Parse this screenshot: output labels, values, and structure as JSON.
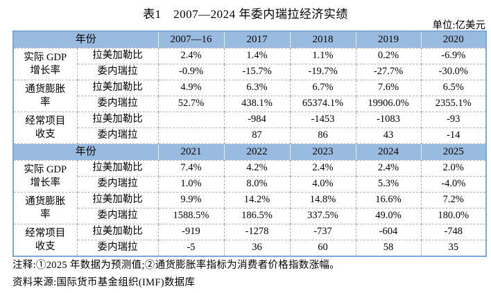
{
  "title": "表1　2007—2024 年委内瑞拉经济实绩",
  "unit_label": "单位:亿美元",
  "table": {
    "year_header": "年份",
    "blocks": [
      {
        "years": [
          "2007—16",
          "2017",
          "2018",
          "2019",
          "2020"
        ],
        "groups": [
          {
            "label_lines": [
              "实际 GDP",
              "增长率"
            ],
            "rows": [
              {
                "region": "拉美加勒比",
                "values": [
                  "2.4%",
                  "1.4%",
                  "1.1%",
                  "0.2%",
                  "-6.9%"
                ]
              },
              {
                "region": "委内瑞拉",
                "values": [
                  "-0.9%",
                  "-15.7%",
                  "-19.7%",
                  "-27.7%",
                  "-30.0%"
                ]
              }
            ]
          },
          {
            "label_lines": [
              "通货膨胀",
              "率"
            ],
            "rows": [
              {
                "region": "拉美加勒比",
                "values": [
                  "4.9%",
                  "6.3%",
                  "6.7%",
                  "7.6%",
                  "6.5%"
                ]
              },
              {
                "region": "委内瑞拉",
                "values": [
                  "52.7%",
                  "438.1%",
                  "65374.1%",
                  "19906.0%",
                  "2355.1%"
                ]
              }
            ]
          },
          {
            "label_lines": [
              "经常项目",
              "收支"
            ],
            "rows": [
              {
                "region": "拉美加勒比",
                "values": [
                  "",
                  "-984",
                  "-1453",
                  "-1083",
                  "-93"
                ]
              },
              {
                "region": "委内瑞拉",
                "values": [
                  "",
                  "87",
                  "86",
                  "43",
                  "-14"
                ]
              }
            ]
          }
        ]
      },
      {
        "years": [
          "2021",
          "2022",
          "2023",
          "2024",
          "2025"
        ],
        "groups": [
          {
            "label_lines": [
              "实际 GDP",
              "增长率"
            ],
            "rows": [
              {
                "region": "拉美加勒比",
                "values": [
                  "7.4%",
                  "4.2%",
                  "2.4%",
                  "2.4%",
                  "2.0%"
                ]
              },
              {
                "region": "委内瑞拉",
                "values": [
                  "1.0%",
                  "8.0%",
                  "4.0%",
                  "5.3%",
                  "-4.0%"
                ]
              }
            ]
          },
          {
            "label_lines": [
              "通货膨胀",
              "率"
            ],
            "rows": [
              {
                "region": "拉美加勒比",
                "values": [
                  "9.9%",
                  "14.2%",
                  "14.8%",
                  "16.6%",
                  "7.2%"
                ]
              },
              {
                "region": "委内瑞拉",
                "values": [
                  "1588.5%",
                  "186.5%",
                  "337.5%",
                  "49.0%",
                  "180.0%"
                ]
              }
            ]
          },
          {
            "label_lines": [
              "经常项目",
              "收支"
            ],
            "rows": [
              {
                "region": "拉美加勒比",
                "values": [
                  "-919",
                  "-1278",
                  "-737",
                  "-604",
                  "-748"
                ]
              },
              {
                "region": "委内瑞拉",
                "values": [
                  "-5",
                  "36",
                  "60",
                  "58",
                  "35"
                ]
              }
            ]
          }
        ]
      }
    ]
  },
  "notes": "注释:①2025 年数据为预测值;②通货膨胀率指标为消费者价格指数涨幅。",
  "source": "资料来源:国际货币基金组织(IMF)数据库",
  "colors": {
    "header_bg": "#9ABBE0",
    "outer_border": "#7DA7D8",
    "grid": "#b3b3b3"
  }
}
